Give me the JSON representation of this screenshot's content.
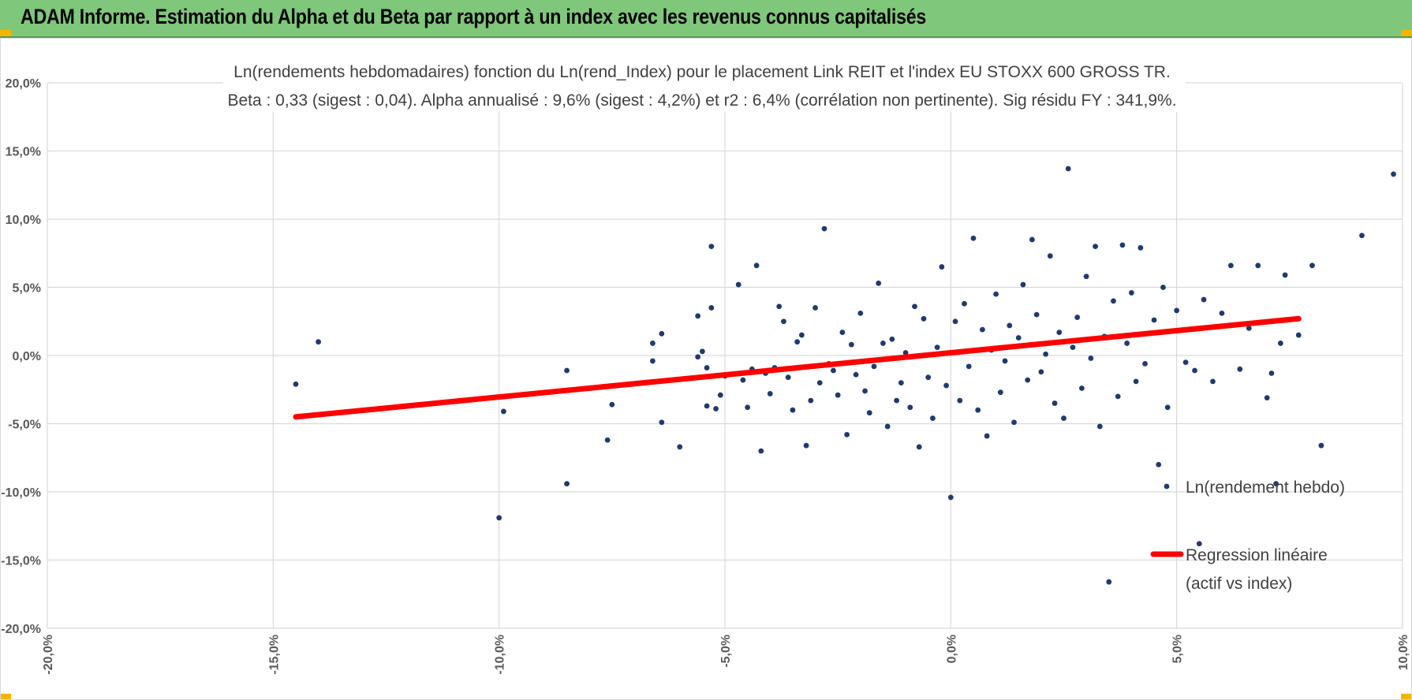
{
  "header": {
    "title": "ADAM Informe. Estimation du Alpha et du Beta par rapport à un index avec les revenus connus capitalisés",
    "bg_color": "#7fc77a"
  },
  "chart_data": {
    "type": "scatter",
    "title_line1": "Ln(rendements hebdomadaires) fonction du Ln(rend_Index) pour le placement Link REIT et l'index EU STOXX 600 GROSS TR.",
    "title_line2": "Beta : 0,33 (sigest : 0,04).  Alpha annualisé : 9,6% (sigest : 4,2%) et r2 : 6,4% (corrélation non pertinente). Sig résidu FY : 341,9%.",
    "xlim": [
      -0.2,
      0.1
    ],
    "ylim": [
      -0.2,
      0.2
    ],
    "x_ticks": [
      "-20,0%",
      "-15,0%",
      "-10,0%",
      "-5,0%",
      "0,0%",
      "5,0%",
      "10,0%"
    ],
    "y_ticks": [
      "20,0%",
      "15,0%",
      "10,0%",
      "5,0%",
      "0,0%",
      "-5,0%",
      "-10,0%",
      "-15,0%",
      "-20,0%"
    ],
    "grid": true,
    "legend_position": "right",
    "series": [
      {
        "name": "Ln(rendement hebdo)",
        "type": "scatter",
        "color": "#1f3a6e",
        "points": [
          [
            -0.145,
            -0.021
          ],
          [
            -0.14,
            0.01
          ],
          [
            -0.1,
            -0.119
          ],
          [
            -0.099,
            -0.041
          ],
          [
            -0.085,
            -0.011
          ],
          [
            -0.085,
            -0.094
          ],
          [
            -0.076,
            -0.062
          ],
          [
            -0.075,
            -0.036
          ],
          [
            -0.066,
            0.009
          ],
          [
            -0.066,
            -0.004
          ],
          [
            -0.064,
            0.016
          ],
          [
            -0.064,
            -0.049
          ],
          [
            -0.06,
            -0.067
          ],
          [
            -0.056,
            0.029
          ],
          [
            -0.056,
            -0.001
          ],
          [
            -0.055,
            0.003
          ],
          [
            -0.054,
            -0.009
          ],
          [
            -0.054,
            -0.037
          ],
          [
            -0.053,
            0.08
          ],
          [
            -0.053,
            0.035
          ],
          [
            -0.052,
            -0.039
          ],
          [
            -0.051,
            -0.029
          ],
          [
            -0.05,
            -0.015
          ],
          [
            -0.047,
            0.052
          ],
          [
            -0.046,
            -0.018
          ],
          [
            -0.045,
            -0.038
          ],
          [
            -0.044,
            -0.01
          ],
          [
            -0.043,
            0.066
          ],
          [
            -0.042,
            -0.07
          ],
          [
            -0.041,
            -0.013
          ],
          [
            -0.04,
            -0.028
          ],
          [
            -0.039,
            -0.009
          ],
          [
            -0.038,
            0.036
          ],
          [
            -0.037,
            0.025
          ],
          [
            -0.036,
            -0.016
          ],
          [
            -0.035,
            -0.04
          ],
          [
            -0.034,
            0.01
          ],
          [
            -0.033,
            0.015
          ],
          [
            -0.032,
            -0.066
          ],
          [
            -0.031,
            -0.033
          ],
          [
            -0.03,
            0.035
          ],
          [
            -0.029,
            -0.02
          ],
          [
            -0.028,
            0.093
          ],
          [
            -0.027,
            -0.006
          ],
          [
            -0.026,
            -0.011
          ],
          [
            -0.025,
            -0.029
          ],
          [
            -0.024,
            0.017
          ],
          [
            -0.023,
            -0.058
          ],
          [
            -0.022,
            0.008
          ],
          [
            -0.021,
            -0.014
          ],
          [
            -0.02,
            0.031
          ],
          [
            -0.019,
            -0.026
          ],
          [
            -0.018,
            -0.042
          ],
          [
            -0.017,
            -0.008
          ],
          [
            -0.016,
            0.053
          ],
          [
            -0.015,
            0.009
          ],
          [
            -0.014,
            -0.052
          ],
          [
            -0.013,
            0.012
          ],
          [
            -0.012,
            -0.033
          ],
          [
            -0.011,
            -0.02
          ],
          [
            -0.01,
            0.002
          ],
          [
            -0.009,
            -0.038
          ],
          [
            -0.008,
            0.036
          ],
          [
            -0.007,
            -0.067
          ],
          [
            -0.006,
            0.027
          ],
          [
            -0.005,
            -0.016
          ],
          [
            -0.004,
            -0.046
          ],
          [
            -0.003,
            0.006
          ],
          [
            -0.002,
            0.065
          ],
          [
            -0.001,
            -0.022
          ],
          [
            0.0,
            -0.104
          ],
          [
            0.001,
            0.025
          ],
          [
            0.002,
            -0.033
          ],
          [
            0.003,
            0.038
          ],
          [
            0.004,
            -0.008
          ],
          [
            0.005,
            0.086
          ],
          [
            0.006,
            -0.04
          ],
          [
            0.007,
            0.019
          ],
          [
            0.008,
            -0.059
          ],
          [
            0.009,
            0.004
          ],
          [
            0.01,
            0.045
          ],
          [
            0.011,
            -0.027
          ],
          [
            0.012,
            -0.004
          ],
          [
            0.013,
            0.022
          ],
          [
            0.014,
            -0.049
          ],
          [
            0.015,
            0.013
          ],
          [
            0.016,
            0.052
          ],
          [
            0.017,
            -0.018
          ],
          [
            0.018,
            0.085
          ],
          [
            0.019,
            0.03
          ],
          [
            0.02,
            -0.012
          ],
          [
            0.021,
            0.001
          ],
          [
            0.022,
            0.073
          ],
          [
            0.023,
            -0.035
          ],
          [
            0.024,
            0.017
          ],
          [
            0.025,
            -0.046
          ],
          [
            0.026,
            0.137
          ],
          [
            0.027,
            0.006
          ],
          [
            0.028,
            0.028
          ],
          [
            0.029,
            -0.024
          ],
          [
            0.03,
            0.058
          ],
          [
            0.031,
            -0.002
          ],
          [
            0.032,
            0.08
          ],
          [
            0.033,
            -0.052
          ],
          [
            0.034,
            0.014
          ],
          [
            0.035,
            -0.166
          ],
          [
            0.036,
            0.04
          ],
          [
            0.037,
            -0.03
          ],
          [
            0.038,
            0.081
          ],
          [
            0.039,
            0.009
          ],
          [
            0.04,
            0.046
          ],
          [
            0.041,
            -0.019
          ],
          [
            0.042,
            0.079
          ],
          [
            0.043,
            -0.006
          ],
          [
            0.045,
            0.026
          ],
          [
            0.046,
            -0.08
          ],
          [
            0.047,
            0.05
          ],
          [
            0.048,
            -0.038
          ],
          [
            0.049,
            0.018
          ],
          [
            0.05,
            0.033
          ],
          [
            0.052,
            -0.005
          ],
          [
            0.054,
            -0.011
          ],
          [
            0.055,
            -0.138
          ],
          [
            0.056,
            0.041
          ],
          [
            0.058,
            -0.019
          ],
          [
            0.06,
            0.031
          ],
          [
            0.062,
            0.066
          ],
          [
            0.064,
            -0.01
          ],
          [
            0.066,
            0.02
          ],
          [
            0.068,
            0.066
          ],
          [
            0.07,
            -0.031
          ],
          [
            0.071,
            -0.013
          ],
          [
            0.072,
            -0.094
          ],
          [
            0.073,
            0.009
          ],
          [
            0.074,
            0.059
          ],
          [
            0.077,
            0.015
          ],
          [
            0.08,
            0.066
          ],
          [
            0.082,
            -0.066
          ],
          [
            0.091,
            0.088
          ],
          [
            0.098,
            0.133
          ]
        ]
      },
      {
        "name": "Regression linéaire (actif vs index)",
        "type": "line",
        "color": "#ff0000",
        "points": [
          [
            -0.145,
            -0.045
          ],
          [
            0.077,
            0.027
          ]
        ]
      }
    ],
    "legend": [
      {
        "label": "Ln(rendement hebdo)",
        "marker": "dot",
        "color": "#1f3a6e"
      },
      {
        "label": "Regression linéaire",
        "label2": "(actif vs index)",
        "marker": "line",
        "color": "#ff0000"
      }
    ]
  }
}
